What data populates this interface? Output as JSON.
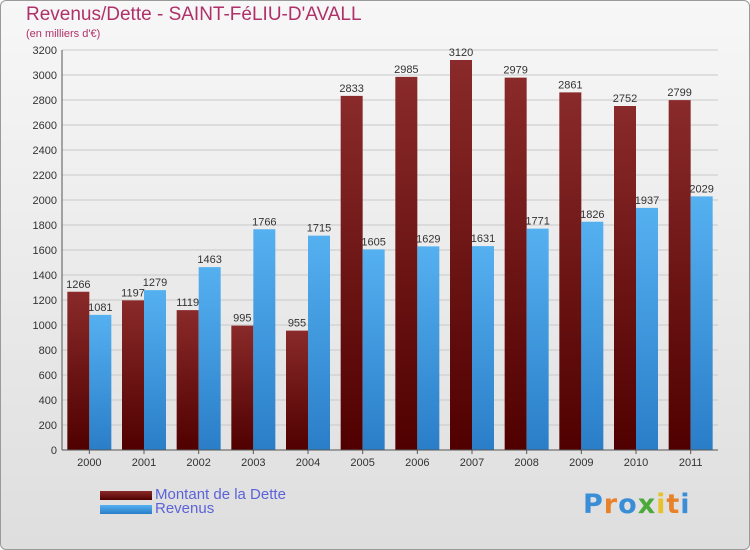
{
  "title": "Revenus/Dette - SAINT-FéLIU-D'AVALL",
  "subtitle": "(en milliers d'€)",
  "logo_text": "Proxiti",
  "colors": {
    "dette": "#7a1010",
    "revenus": "#3a96de",
    "title": "#b0306a",
    "legend_text": "#5b63d8"
  },
  "chart_data": {
    "type": "bar",
    "title": "Revenus/Dette - SAINT-FéLIU-D'AVALL",
    "subtitle": "(en milliers d'€)",
    "xlabel": "",
    "ylabel": "",
    "categories": [
      "2000",
      "2001",
      "2002",
      "2003",
      "2004",
      "2005",
      "2006",
      "2007",
      "2008",
      "2009",
      "2010",
      "2011"
    ],
    "series": [
      {
        "name": "Montant de la Dette",
        "values": [
          1266,
          1197,
          1119,
          995,
          955,
          2833,
          2985,
          3120,
          2979,
          2861,
          2752,
          2799
        ]
      },
      {
        "name": "Revenus",
        "values": [
          1081,
          1279,
          1463,
          1766,
          1715,
          1605,
          1629,
          1631,
          1771,
          1826,
          1937,
          2029
        ]
      }
    ],
    "ylim": [
      0,
      3200
    ],
    "yticks": [
      0,
      200,
      400,
      600,
      800,
      1000,
      1200,
      1400,
      1600,
      1800,
      2000,
      2200,
      2400,
      2600,
      2800,
      3000,
      3200
    ],
    "grid": true,
    "legend_position": "bottom-left"
  },
  "legend": {
    "items": [
      {
        "label": "Montant de la Dette"
      },
      {
        "label": "Revenus"
      }
    ]
  }
}
